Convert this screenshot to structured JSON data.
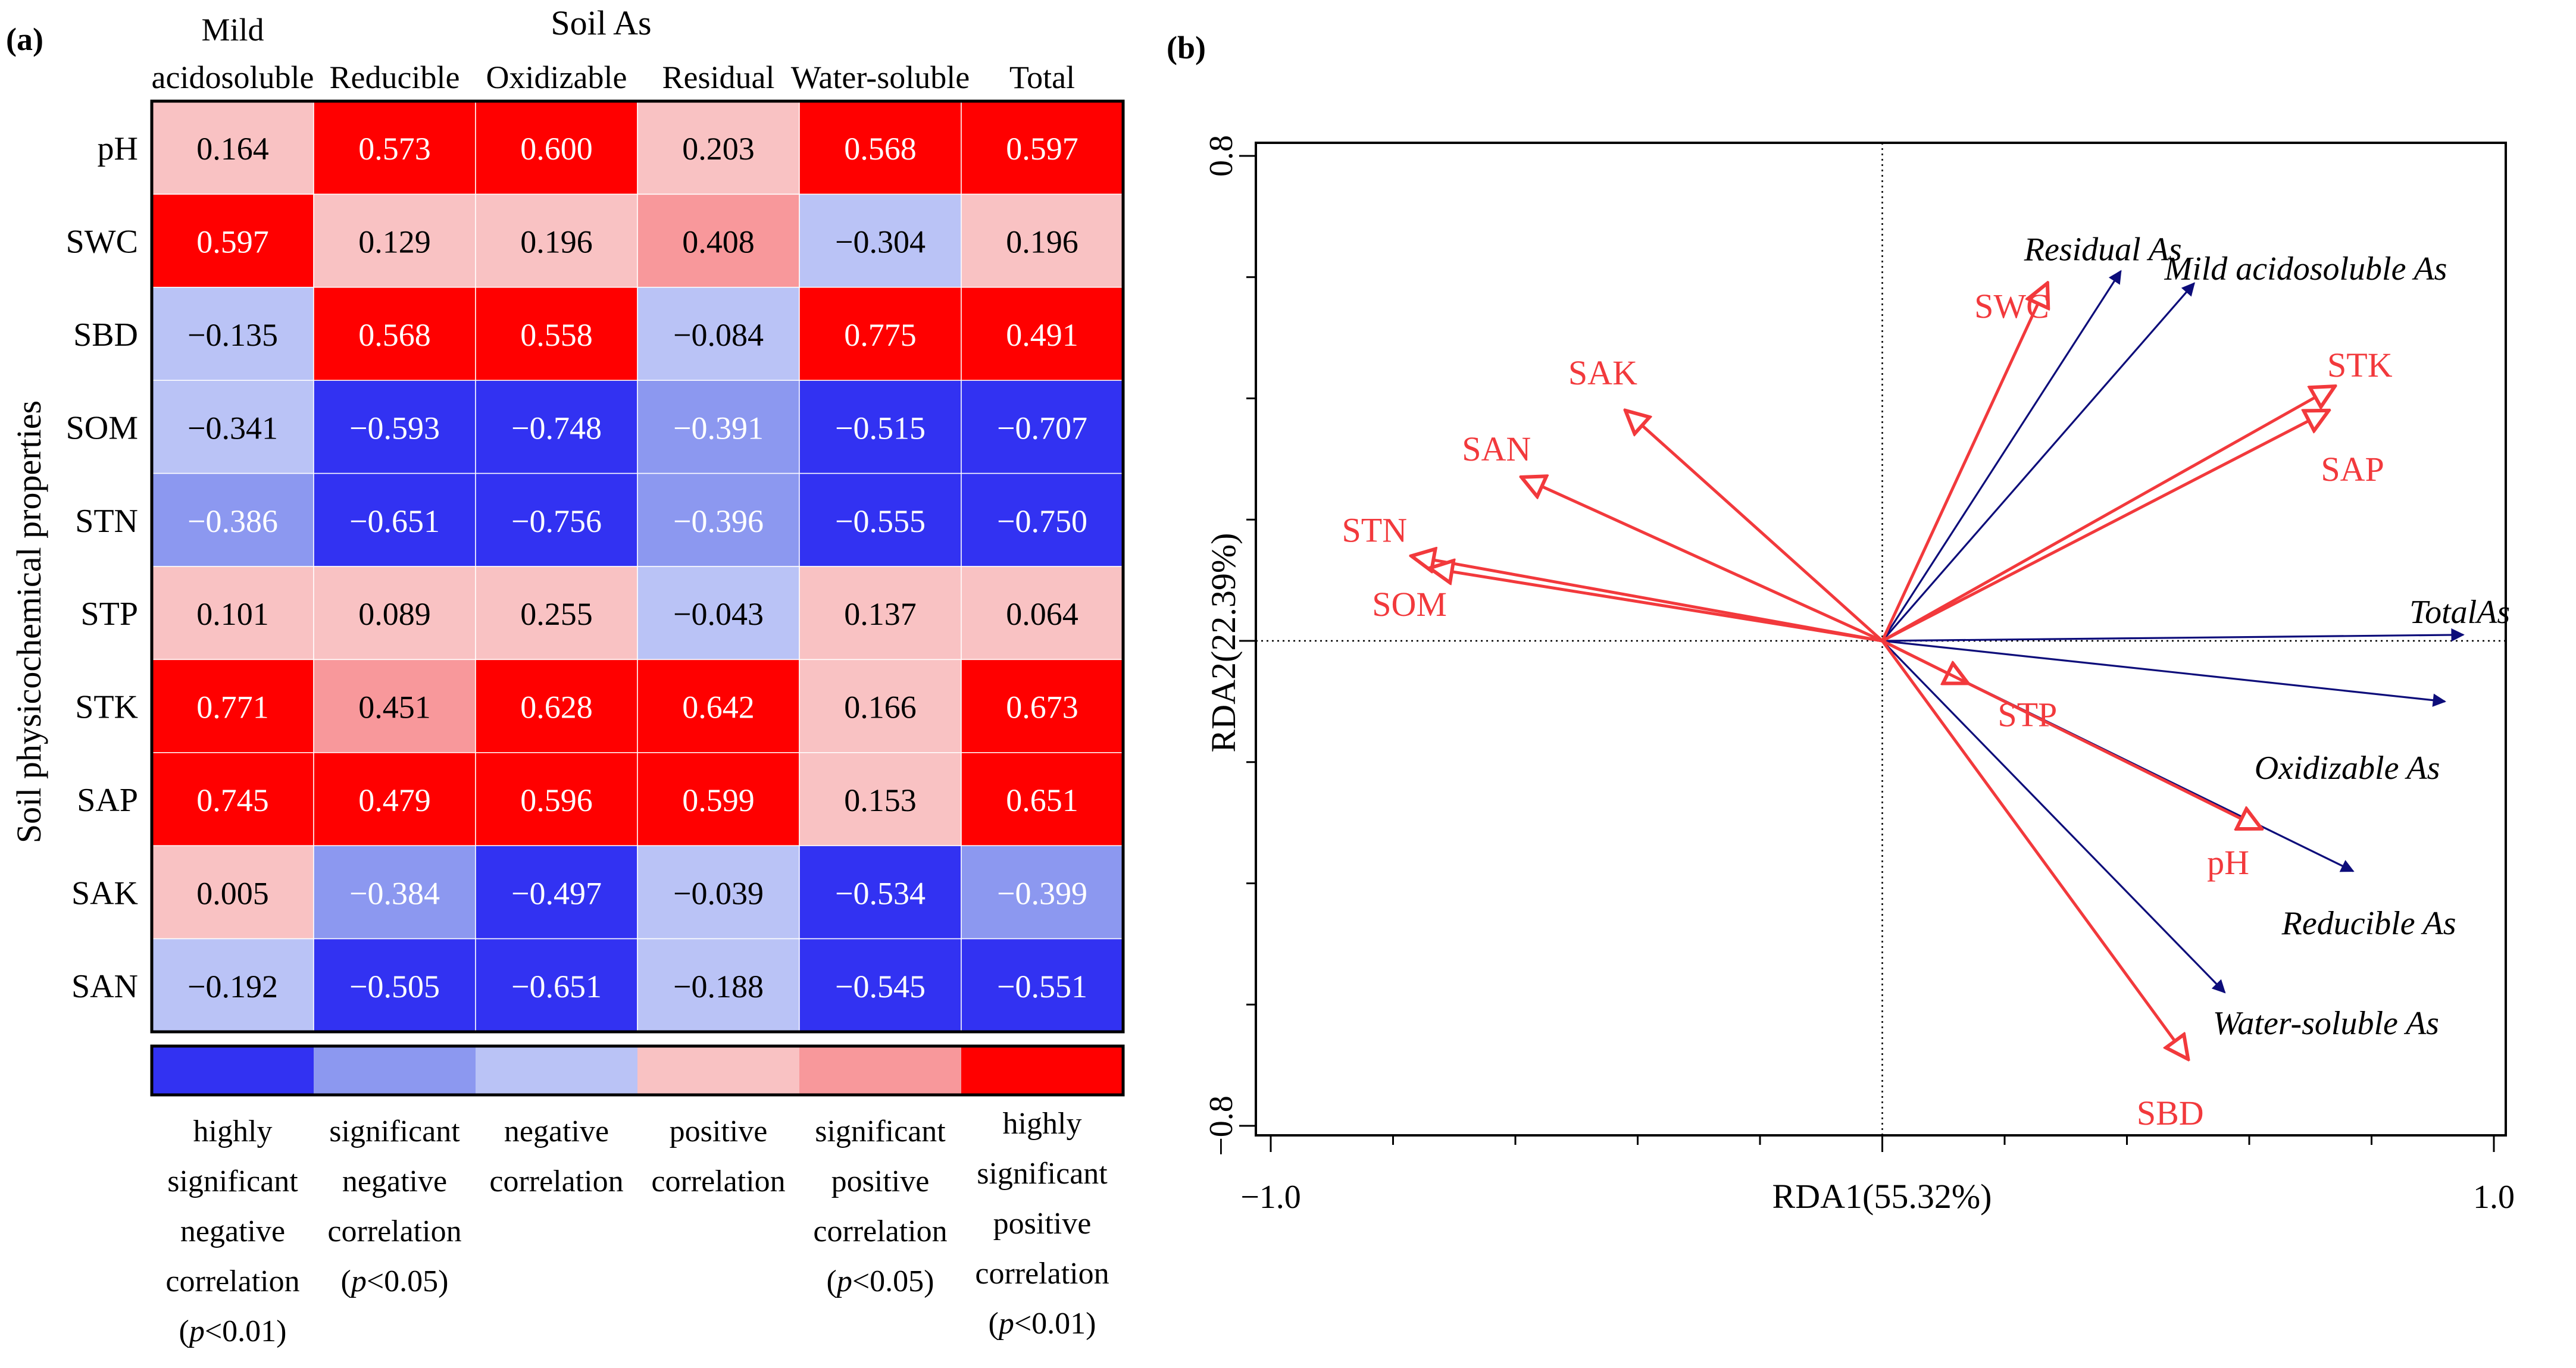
{
  "panel_a": {
    "label": "(a)",
    "col_group_title": "Soil As",
    "row_group_title": "Soil physicochemical properties",
    "colors": {
      "highly_neg": "#3232F2",
      "sig_neg": "#8C98F0",
      "neg": "#BAC3F6",
      "pos": "#F9C2C3",
      "sig_pos": "#F8989B",
      "highly_pos": "#FF0000",
      "grid": "#ffffff",
      "border": "#000000"
    },
    "legend": [
      {
        "key": "highly_neg",
        "lines": [
          "highly",
          "significant",
          "negative",
          "correlation"
        ],
        "p": "<0.01"
      },
      {
        "key": "sig_neg",
        "lines": [
          "significant",
          "negative",
          "correlation"
        ],
        "p": "<0.05"
      },
      {
        "key": "neg",
        "lines": [
          "negative",
          "correlation"
        ],
        "p": null
      },
      {
        "key": "pos",
        "lines": [
          "positive",
          "correlation"
        ],
        "p": null
      },
      {
        "key": "sig_pos",
        "lines": [
          "significant",
          "positive",
          "correlation"
        ],
        "p": "<0.05"
      },
      {
        "key": "highly_pos",
        "lines": [
          "highly",
          "significant",
          "positive",
          "correlation"
        ],
        "p": "<0.01"
      }
    ],
    "legend_p_letter": "p"
  },
  "chart_data": [
    {
      "type": "heatmap",
      "title": "Soil As",
      "columns": [
        [
          "Mild",
          "acidosoluble"
        ],
        [
          "Reducible"
        ],
        [
          "Oxidizable"
        ],
        [
          "Residual"
        ],
        [
          "Water-soluble"
        ],
        [
          "Total"
        ]
      ],
      "rows": [
        "pH",
        "SWC",
        "SBD",
        "SOM",
        "STN",
        "STP",
        "STK",
        "SAP",
        "SAK",
        "SAN"
      ],
      "values": [
        [
          "0.164",
          "0.573",
          "0.600",
          "0.203",
          "0.568",
          "0.597"
        ],
        [
          "0.597",
          "0.129",
          "0.196",
          "0.408",
          "−0.304",
          "0.196"
        ],
        [
          "−0.135",
          "0.568",
          "0.558",
          "−0.084",
          "0.775",
          "0.491"
        ],
        [
          "−0.341",
          "−0.593",
          "−0.748",
          "−0.391",
          "−0.515",
          "−0.707"
        ],
        [
          "−0.386",
          "−0.651",
          "−0.756",
          "−0.396",
          "−0.555",
          "−0.750"
        ],
        [
          "0.101",
          "0.089",
          "0.255",
          "−0.043",
          "0.137",
          "0.064"
        ],
        [
          "0.771",
          "0.451",
          "0.628",
          "0.642",
          "0.166",
          "0.673"
        ],
        [
          "0.745",
          "0.479",
          "0.596",
          "0.599",
          "0.153",
          "0.651"
        ],
        [
          "0.005",
          "−0.384",
          "−0.497",
          "−0.039",
          "−0.534",
          "−0.399"
        ],
        [
          "−0.192",
          "−0.505",
          "−0.651",
          "−0.188",
          "−0.545",
          "−0.551"
        ]
      ],
      "categories": [
        [
          "pos",
          "highly_pos",
          "highly_pos",
          "pos",
          "highly_pos",
          "highly_pos"
        ],
        [
          "highly_pos",
          "pos",
          "pos",
          "sig_pos",
          "neg",
          "pos"
        ],
        [
          "neg",
          "highly_pos",
          "highly_pos",
          "neg",
          "highly_pos",
          "highly_pos"
        ],
        [
          "neg",
          "highly_neg",
          "highly_neg",
          "sig_neg",
          "highly_neg",
          "highly_neg"
        ],
        [
          "sig_neg",
          "highly_neg",
          "highly_neg",
          "sig_neg",
          "highly_neg",
          "highly_neg"
        ],
        [
          "pos",
          "pos",
          "pos",
          "neg",
          "pos",
          "pos"
        ],
        [
          "highly_pos",
          "sig_pos",
          "highly_pos",
          "highly_pos",
          "pos",
          "highly_pos"
        ],
        [
          "highly_pos",
          "highly_pos",
          "highly_pos",
          "highly_pos",
          "pos",
          "highly_pos"
        ],
        [
          "pos",
          "sig_neg",
          "highly_neg",
          "neg",
          "highly_neg",
          "sig_neg"
        ],
        [
          "neg",
          "highly_neg",
          "highly_neg",
          "neg",
          "highly_neg",
          "highly_neg"
        ]
      ],
      "ylabel": "Soil physicochemical properties"
    },
    {
      "type": "scatter",
      "subtype": "rda-biplot",
      "label": "(b)",
      "xlabel": "RDA1(55.32%)",
      "ylabel": "RDA2(22.39%)",
      "xlim": [
        -1.0,
        1.0
      ],
      "ylim": [
        -0.8,
        0.8
      ],
      "xticks": [
        "−1.0",
        "1.0"
      ],
      "yticks": [
        "0.8",
        "−0.8"
      ],
      "origin_lines": "dotted",
      "colors": {
        "response": "#0D0D7A",
        "explanatory": "#F2393C"
      },
      "response_vectors": [
        {
          "name": "Residual As",
          "x": 0.39,
          "y": 0.61
        },
        {
          "name": "Mild acidosoluble As",
          "x": 0.51,
          "y": 0.59
        },
        {
          "name": "TotalAs",
          "x": 0.95,
          "y": 0.01
        },
        {
          "name": "Oxidizable As",
          "x": 0.92,
          "y": -0.1
        },
        {
          "name": "Reducible As",
          "x": 0.77,
          "y": -0.38
        },
        {
          "name": "Water-soluble As",
          "x": 0.56,
          "y": -0.58
        }
      ],
      "explanatory_vectors": [
        {
          "name": "SWC",
          "x": 0.27,
          "y": 0.59
        },
        {
          "name": "STK",
          "x": 0.74,
          "y": 0.42
        },
        {
          "name": "SAP",
          "x": 0.73,
          "y": 0.38
        },
        {
          "name": "SAK",
          "x": -0.42,
          "y": 0.38
        },
        {
          "name": "SAN",
          "x": -0.59,
          "y": 0.27
        },
        {
          "name": "STN",
          "x": -0.77,
          "y": 0.14
        },
        {
          "name": "SOM",
          "x": -0.74,
          "y": 0.12
        },
        {
          "name": "STP",
          "x": 0.14,
          "y": -0.07
        },
        {
          "name": "pH",
          "x": 0.62,
          "y": -0.31
        },
        {
          "name": "SBD",
          "x": 0.5,
          "y": -0.69
        }
      ]
    }
  ]
}
